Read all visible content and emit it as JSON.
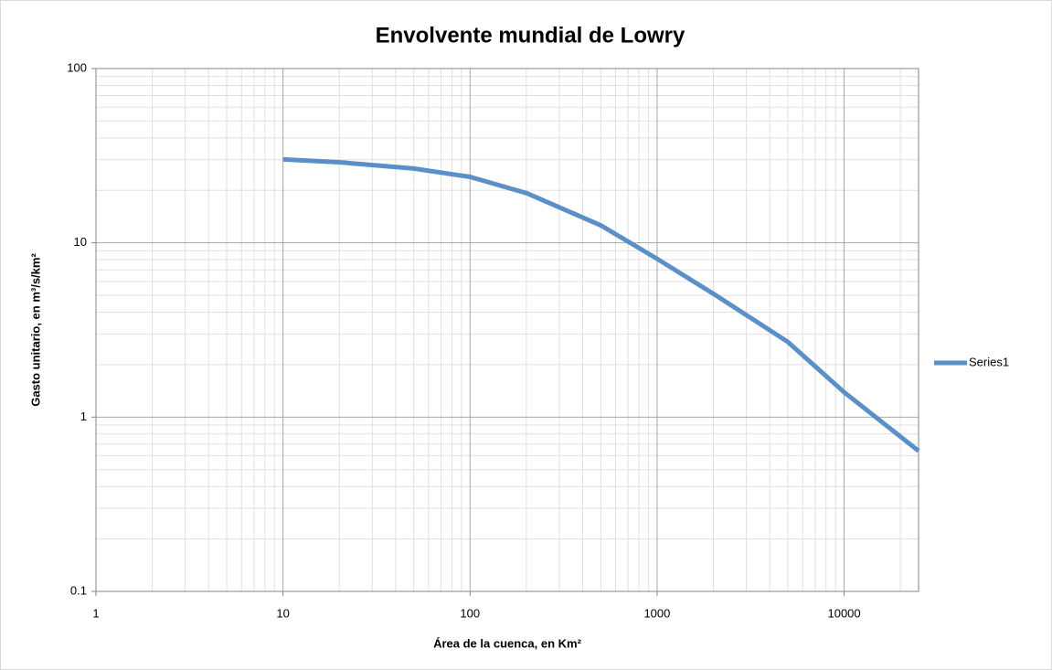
{
  "chart_data": {
    "type": "line",
    "title": "Envolvente mundial de Lowry",
    "x_label": "Área de la cuenca, en Km²",
    "y_label": "Gasto unitario, en m³/s/km²",
    "x": [
      10,
      20,
      50,
      100,
      200,
      500,
      1000,
      2000,
      5000,
      10000,
      25000
    ],
    "series": [
      {
        "name": "Series1",
        "color": "#5b8fc7",
        "values": [
          30.1,
          29,
          26.7,
          23.9,
          19.3,
          12.6,
          8.1,
          5.1,
          2.7,
          1.39,
          0.64
        ]
      }
    ],
    "xlim": [
      1,
      25000
    ],
    "xticks": [
      1,
      10,
      100,
      1000,
      10000
    ],
    "ylim": [
      0.1,
      100
    ],
    "yticks": [
      0.1,
      1,
      10,
      100
    ],
    "xlog": true,
    "ylog": true,
    "grid": true,
    "minor_grid": true,
    "legend": "right"
  }
}
